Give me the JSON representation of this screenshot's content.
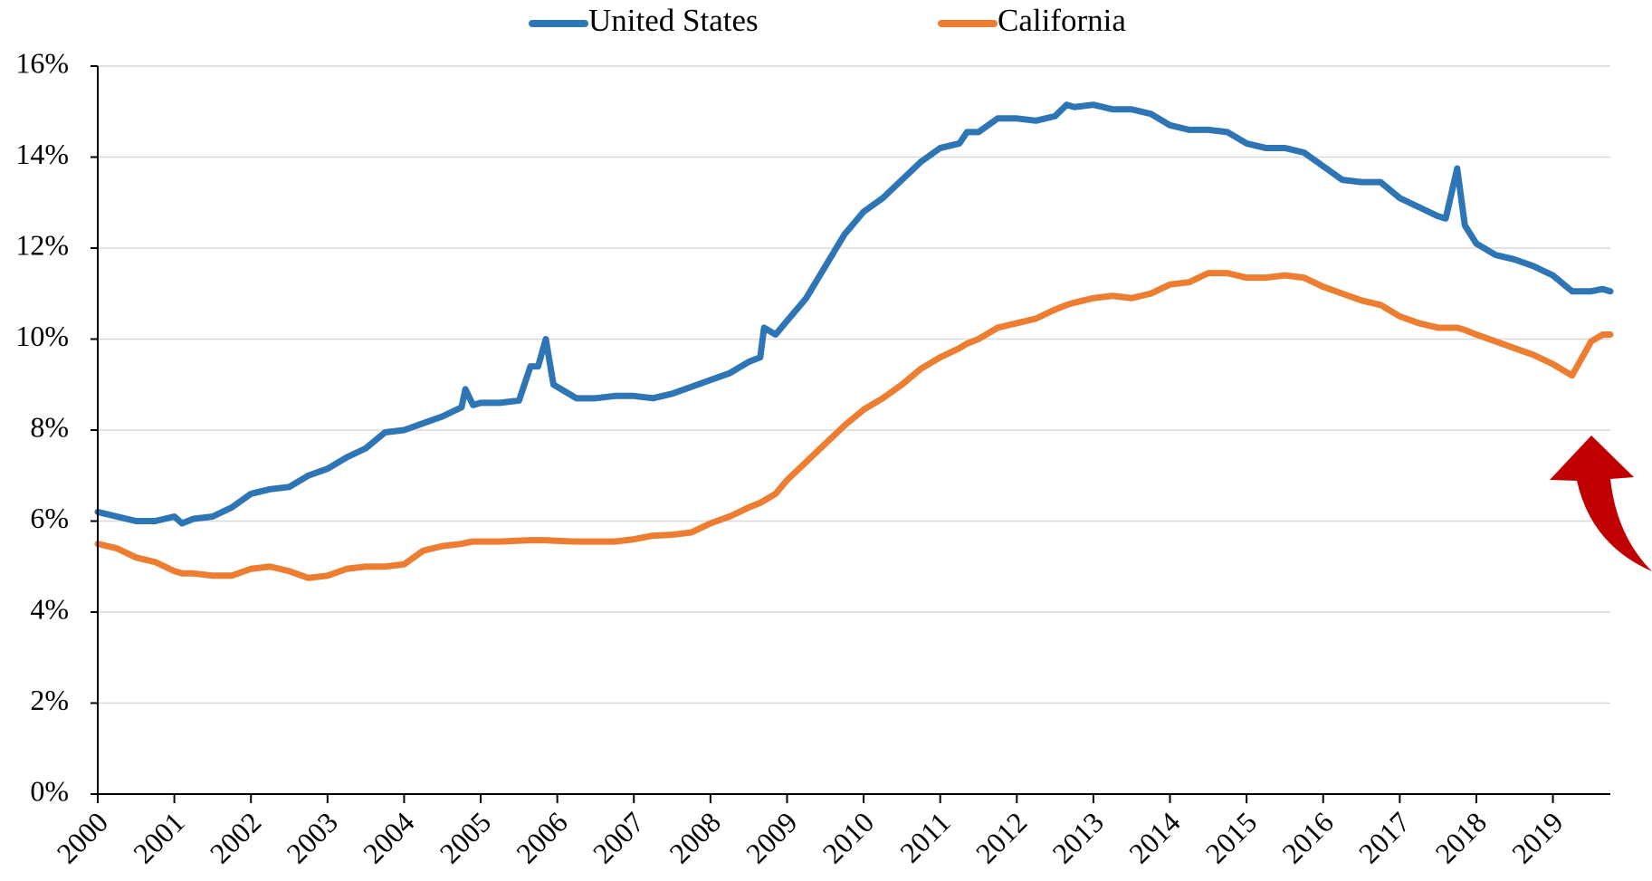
{
  "chart_data": {
    "type": "line",
    "x": [
      2000.0,
      2000.25,
      2000.5,
      2000.75,
      2001.0,
      2001.1,
      2001.25,
      2001.5,
      2001.75,
      2002.0,
      2002.25,
      2002.5,
      2002.75,
      2003.0,
      2003.25,
      2003.5,
      2003.75,
      2004.0,
      2004.25,
      2004.5,
      2004.75,
      2004.8,
      2004.9,
      2005.0,
      2005.25,
      2005.5,
      2005.65,
      2005.75,
      2005.85,
      2005.95,
      2006.25,
      2006.5,
      2006.75,
      2007.0,
      2007.25,
      2007.5,
      2007.75,
      2008.0,
      2008.25,
      2008.5,
      2008.65,
      2008.7,
      2008.85,
      2009.0,
      2009.25,
      2009.5,
      2009.75,
      2010.0,
      2010.25,
      2010.5,
      2010.75,
      2011.0,
      2011.25,
      2011.35,
      2011.5,
      2011.75,
      2012.0,
      2012.25,
      2012.5,
      2012.65,
      2012.75,
      2013.0,
      2013.25,
      2013.5,
      2013.75,
      2014.0,
      2014.25,
      2014.5,
      2014.75,
      2015.0,
      2015.25,
      2015.5,
      2015.75,
      2016.0,
      2016.25,
      2016.5,
      2016.75,
      2017.0,
      2017.25,
      2017.5,
      2017.6,
      2017.75,
      2017.85,
      2018.0,
      2018.25,
      2018.5,
      2018.75,
      2019.0,
      2019.25,
      2019.5,
      2019.65,
      2019.75
    ],
    "series": [
      {
        "name": "United States",
        "color": "#2e75b6",
        "values": [
          6.2,
          6.1,
          6.0,
          6.0,
          6.1,
          5.95,
          6.05,
          6.1,
          6.3,
          6.6,
          6.7,
          6.75,
          7.0,
          7.15,
          7.4,
          7.6,
          7.95,
          8.0,
          8.15,
          8.3,
          8.5,
          8.9,
          8.55,
          8.6,
          8.6,
          8.65,
          9.4,
          9.4,
          10.0,
          9.0,
          8.7,
          8.7,
          8.75,
          8.75,
          8.7,
          8.8,
          8.95,
          9.1,
          9.25,
          9.5,
          9.6,
          10.25,
          10.1,
          10.4,
          10.9,
          11.6,
          12.3,
          12.8,
          13.1,
          13.5,
          13.9,
          14.2,
          14.3,
          14.55,
          14.55,
          14.85,
          14.85,
          14.8,
          14.9,
          15.15,
          15.1,
          15.15,
          15.05,
          15.05,
          14.95,
          14.7,
          14.6,
          14.6,
          14.55,
          14.3,
          14.2,
          14.2,
          14.1,
          13.8,
          13.5,
          13.45,
          13.45,
          13.1,
          12.9,
          12.7,
          12.65,
          13.75,
          12.5,
          12.1,
          11.85,
          11.75,
          11.6,
          11.4,
          11.05,
          11.05,
          11.1,
          11.05
        ]
      },
      {
        "name": "California",
        "color": "#ed7d31",
        "values": [
          5.5,
          5.4,
          5.2,
          5.1,
          4.9,
          4.85,
          4.85,
          4.8,
          4.8,
          4.95,
          5.0,
          4.9,
          4.75,
          4.8,
          4.95,
          5.0,
          5.0,
          5.05,
          5.35,
          5.45,
          5.5,
          5.52,
          5.55,
          5.55,
          5.55,
          5.57,
          5.58,
          5.58,
          5.58,
          5.57,
          5.55,
          5.55,
          5.55,
          5.6,
          5.68,
          5.7,
          5.75,
          5.95,
          6.1,
          6.3,
          6.4,
          6.45,
          6.6,
          6.9,
          7.3,
          7.7,
          8.1,
          8.45,
          8.7,
          9.0,
          9.35,
          9.6,
          9.8,
          9.9,
          10.0,
          10.25,
          10.35,
          10.45,
          10.65,
          10.75,
          10.8,
          10.9,
          10.95,
          10.9,
          11.0,
          11.2,
          11.25,
          11.45,
          11.45,
          11.35,
          11.35,
          11.4,
          11.35,
          11.15,
          11.0,
          10.85,
          10.75,
          10.5,
          10.35,
          10.25,
          10.25,
          10.25,
          10.2,
          10.1,
          9.95,
          9.8,
          9.65,
          9.45,
          9.2,
          9.95,
          10.1,
          10.1
        ]
      }
    ],
    "xlim": [
      2000,
      2019.75
    ],
    "xticks": [
      2000,
      2001,
      2002,
      2003,
      2004,
      2005,
      2006,
      2007,
      2008,
      2009,
      2010,
      2011,
      2012,
      2013,
      2014,
      2015,
      2016,
      2017,
      2018,
      2019
    ],
    "ylim": [
      0,
      16
    ],
    "yticks": [
      {
        "value": 0,
        "label": "0%"
      },
      {
        "value": 2,
        "label": "2%"
      },
      {
        "value": 4,
        "label": "4%"
      },
      {
        "value": 6,
        "label": "6%"
      },
      {
        "value": 8,
        "label": "8%"
      },
      {
        "value": 10,
        "label": "10%"
      },
      {
        "value": 12,
        "label": "12%"
      },
      {
        "value": 14,
        "label": "14%"
      },
      {
        "value": 16,
        "label": "16%"
      }
    ],
    "grid": true
  }
}
